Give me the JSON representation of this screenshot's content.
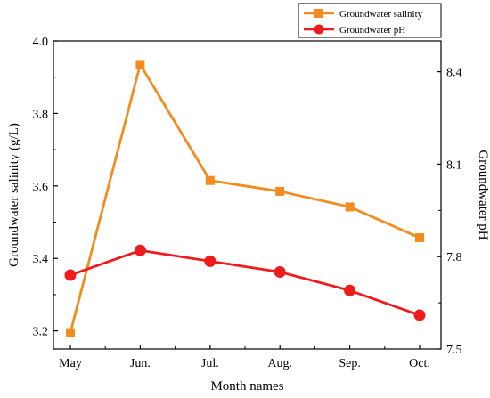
{
  "chart_data": {
    "type": "line",
    "categories": [
      "May",
      "Jun.",
      "Jul.",
      "Aug.",
      "Sep.",
      "Oct."
    ],
    "xlabel": "Month names",
    "ylabel_left": "Groundwater salinity (g/L)",
    "ylabel_right": "Groundwater pH",
    "ylim_left": [
      3.15,
      4.0
    ],
    "ylim_right": [
      7.5,
      8.5
    ],
    "yticks_left": [
      "3.2",
      "3.4",
      "3.6",
      "3.8",
      "4.0"
    ],
    "yticks_right": [
      "7.5",
      "7.8",
      "8.1",
      "8.4"
    ],
    "legend_position": "top-right",
    "series": [
      {
        "name": "Groundwater salinity",
        "axis": "left",
        "color": "#f28c1e",
        "marker": "square",
        "values": [
          3.195,
          3.935,
          3.615,
          3.585,
          3.542,
          3.457
        ]
      },
      {
        "name": "Groundwater pH",
        "axis": "right",
        "color": "#ee1c1c",
        "marker": "circle",
        "values": [
          7.74,
          7.82,
          7.785,
          7.75,
          7.69,
          7.61
        ]
      }
    ]
  }
}
